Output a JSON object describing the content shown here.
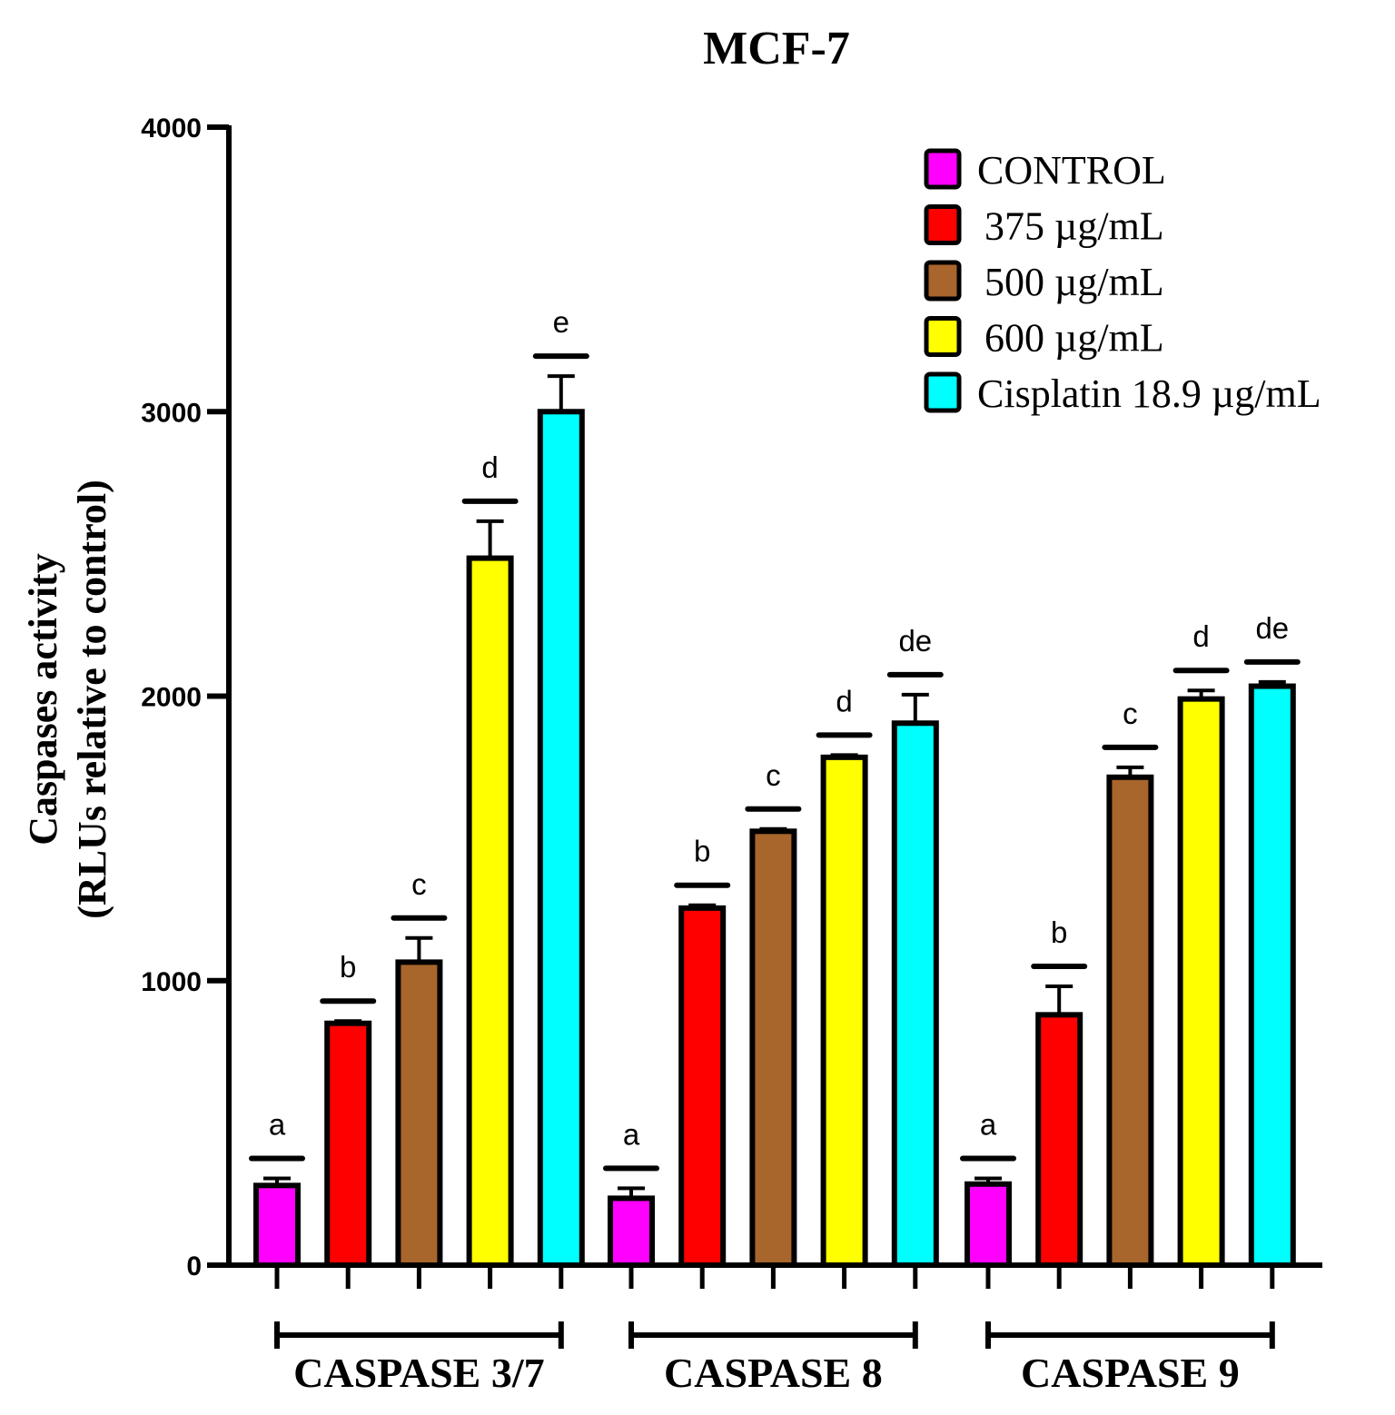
{
  "chart_data": {
    "type": "bar",
    "title": "MCF-7",
    "xlabel": "",
    "ylabel_line1": "Caspases activity",
    "ylabel_line2": "(RLUs relative to control)",
    "ylim": [
      0,
      4000
    ],
    "yticks": [
      0,
      1000,
      2000,
      3000,
      4000
    ],
    "ytick_labels": [
      "0",
      "1000",
      "2000",
      "3000",
      "4000"
    ],
    "legend_position": "top-right",
    "categories": [
      "CASPASE 3/7",
      "CASPASE 8",
      "CASPASE 9"
    ],
    "series": [
      {
        "name": "CONTROL",
        "color": "#ff00ff",
        "values": [
          280,
          235,
          285
        ],
        "errors": [
          25,
          35,
          20
        ],
        "letters": [
          "a",
          "a",
          "a"
        ]
      },
      {
        "name": "375 µg/mL",
        "color": "#ff0000",
        "values": [
          850,
          1255,
          880
        ],
        "errors": [
          8,
          10,
          100
        ],
        "letters": [
          "b",
          "b",
          "b"
        ]
      },
      {
        "name": "500 µg/mL",
        "color": "#a8652c",
        "values": [
          1065,
          1525,
          1715
        ],
        "errors": [
          85,
          8,
          35
        ],
        "letters": [
          "c",
          "c",
          "c"
        ]
      },
      {
        "name": "600 µg/mL",
        "color": "#ffff00",
        "values": [
          2485,
          1785,
          1990
        ],
        "errors": [
          130,
          8,
          30
        ],
        "letters": [
          "d",
          "d",
          "d"
        ]
      },
      {
        "name": "Cisplatin 18.9 µg/mL",
        "color": "#00ffff",
        "values": [
          3000,
          1905,
          2035
        ],
        "errors": [
          125,
          100,
          15
        ],
        "letters": [
          "e",
          "de",
          "de"
        ]
      }
    ]
  }
}
